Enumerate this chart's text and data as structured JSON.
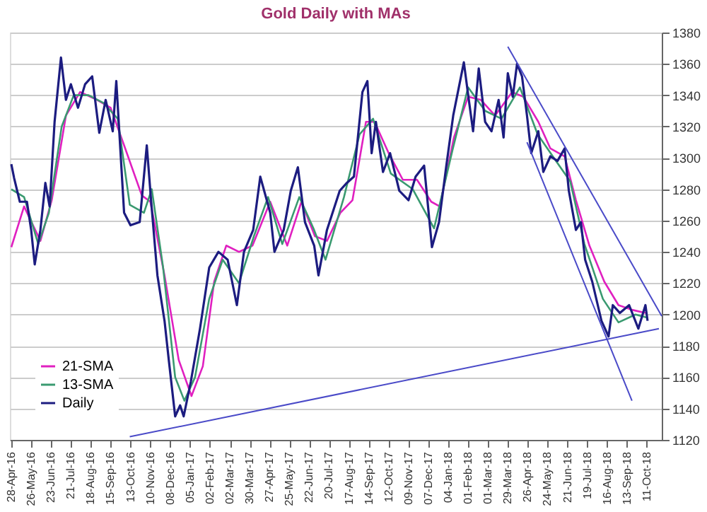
{
  "chart_data": {
    "type": "line",
    "title": "Gold Daily with MAs",
    "legend": "bottom left",
    "grid": "y",
    "xlim": [
      "2016-04-26",
      "2018-11-01"
    ],
    "ylim": [
      1120,
      1380
    ],
    "yticks": [
      1120,
      1140,
      1160,
      1180,
      1200,
      1220,
      1240,
      1260,
      1280,
      1300,
      1320,
      1340,
      1360,
      1380
    ],
    "xticks": [
      {
        "value": "2016-04-28",
        "label": "28-Apr-16"
      },
      {
        "value": "2016-05-26",
        "label": "26-May-16"
      },
      {
        "value": "2016-06-23",
        "label": "23-Jun-16"
      },
      {
        "value": "2016-07-21",
        "label": "21-Jul-16"
      },
      {
        "value": "2016-08-18",
        "label": "18-Aug-16"
      },
      {
        "value": "2016-09-15",
        "label": "15-Sep-16"
      },
      {
        "value": "2016-10-13",
        "label": "13-Oct-16"
      },
      {
        "value": "2016-11-10",
        "label": "10-Nov-16"
      },
      {
        "value": "2016-12-08",
        "label": "08-Dec-16"
      },
      {
        "value": "2017-01-05",
        "label": "05-Jan-17"
      },
      {
        "value": "2017-02-02",
        "label": "02-Feb-17"
      },
      {
        "value": "2017-03-02",
        "label": "02-Mar-17"
      },
      {
        "value": "2017-03-30",
        "label": "30-Mar-17"
      },
      {
        "value": "2017-04-27",
        "label": "27-Apr-17"
      },
      {
        "value": "2017-05-25",
        "label": "25-May-17"
      },
      {
        "value": "2017-06-22",
        "label": "22-Jun-17"
      },
      {
        "value": "2017-07-20",
        "label": "20-Jul-17"
      },
      {
        "value": "2017-08-17",
        "label": "17-Aug-17"
      },
      {
        "value": "2017-09-14",
        "label": "14-Sep-17"
      },
      {
        "value": "2017-10-12",
        "label": "12-Oct-17"
      },
      {
        "value": "2017-11-09",
        "label": "09-Nov-17"
      },
      {
        "value": "2017-12-07",
        "label": "07-Dec-17"
      },
      {
        "value": "2018-01-04",
        "label": "04-Jan-18"
      },
      {
        "value": "2018-02-01",
        "label": "01-Feb-18"
      },
      {
        "value": "2018-03-01",
        "label": "01-Mar-18"
      },
      {
        "value": "2018-03-29",
        "label": "29-Mar-18"
      },
      {
        "value": "2018-04-26",
        "label": "26-Apr-18"
      },
      {
        "value": "2018-05-24",
        "label": "24-May-18"
      },
      {
        "value": "2018-06-21",
        "label": "21-Jun-18"
      },
      {
        "value": "2018-07-19",
        "label": "19-Jul-18"
      },
      {
        "value": "2018-08-16",
        "label": "16-Aug-18"
      },
      {
        "value": "2018-09-13",
        "label": "13-Sep-18"
      },
      {
        "value": "2018-10-11",
        "label": "11-Oct-18"
      }
    ],
    "series": [
      {
        "name": "21-SMA",
        "color": "#e020c0",
        "x": [
          "2016-04-28",
          "2016-05-16",
          "2016-06-08",
          "2016-06-24",
          "2016-07-14",
          "2016-08-03",
          "2016-08-27",
          "2016-09-15",
          "2016-10-04",
          "2016-10-29",
          "2016-11-10",
          "2016-11-30",
          "2016-12-20",
          "2017-01-07",
          "2017-01-23",
          "2017-02-08",
          "2017-02-25",
          "2017-03-15",
          "2017-04-03",
          "2017-04-28",
          "2017-05-22",
          "2017-06-11",
          "2017-06-30",
          "2017-07-17",
          "2017-08-05",
          "2017-08-22",
          "2017-09-10",
          "2017-09-22",
          "2017-10-12",
          "2017-11-01",
          "2017-11-21",
          "2017-12-11",
          "2017-12-23",
          "2018-01-12",
          "2018-02-01",
          "2018-02-19",
          "2018-03-11",
          "2018-04-04",
          "2018-04-20",
          "2018-05-11",
          "2018-05-28",
          "2018-06-17",
          "2018-07-03",
          "2018-07-22",
          "2018-08-12",
          "2018-09-01",
          "2018-09-20",
          "2018-10-09"
        ],
        "values": [
          1243,
          1269,
          1247,
          1273,
          1327,
          1342,
          1337,
          1332,
          1308,
          1276,
          1272,
          1225,
          1171,
          1148,
          1167,
          1221,
          1244,
          1240,
          1244,
          1272,
          1244,
          1272,
          1250,
          1247,
          1265,
          1273,
          1323,
          1323,
          1303,
          1286,
          1286,
          1272,
          1269,
          1313,
          1339,
          1337,
          1327,
          1342,
          1339,
          1323,
          1306,
          1301,
          1273,
          1244,
          1221,
          1206,
          1203,
          1201
        ]
      },
      {
        "name": "13-SMA",
        "color": "#3a9a70",
        "x": [
          "2016-04-28",
          "2016-05-16",
          "2016-06-05",
          "2016-06-20",
          "2016-07-08",
          "2016-07-25",
          "2016-08-15",
          "2016-09-05",
          "2016-09-25",
          "2016-10-12",
          "2016-11-01",
          "2016-11-12",
          "2016-11-28",
          "2016-12-15",
          "2016-12-28",
          "2017-01-12",
          "2017-02-01",
          "2017-02-20",
          "2017-03-15",
          "2017-04-05",
          "2017-04-25",
          "2017-05-15",
          "2017-06-08",
          "2017-06-28",
          "2017-07-15",
          "2017-08-10",
          "2017-09-01",
          "2017-09-20",
          "2017-10-15",
          "2017-11-15",
          "2017-12-15",
          "2018-01-10",
          "2018-02-01",
          "2018-02-25",
          "2018-03-20",
          "2018-04-15",
          "2018-05-10",
          "2018-06-05",
          "2018-06-25",
          "2018-07-15",
          "2018-08-10",
          "2018-09-01",
          "2018-09-25",
          "2018-10-12"
        ],
        "values": [
          1280,
          1275,
          1245,
          1265,
          1320,
          1340,
          1340,
          1335,
          1325,
          1270,
          1265,
          1280,
          1230,
          1160,
          1145,
          1160,
          1210,
          1235,
          1220,
          1250,
          1275,
          1245,
          1275,
          1255,
          1235,
          1275,
          1315,
          1325,
          1290,
          1280,
          1255,
          1305,
          1345,
          1330,
          1325,
          1345,
          1315,
          1298,
          1285,
          1245,
          1210,
          1195,
          1200,
          1198
        ]
      },
      {
        "name": "Daily",
        "color": "#1c1c80",
        "x": [
          "2016-04-28",
          "2016-05-02",
          "2016-05-10",
          "2016-05-20",
          "2016-05-26",
          "2016-05-31",
          "2016-06-08",
          "2016-06-15",
          "2016-06-21",
          "2016-06-28",
          "2016-07-07",
          "2016-07-14",
          "2016-07-21",
          "2016-07-31",
          "2016-08-10",
          "2016-08-20",
          "2016-08-30",
          "2016-09-08",
          "2016-09-18",
          "2016-09-23",
          "2016-10-04",
          "2016-10-13",
          "2016-10-26",
          "2016-11-05",
          "2016-11-11",
          "2016-11-20",
          "2016-11-30",
          "2016-12-06",
          "2016-12-15",
          "2016-12-22",
          "2016-12-27",
          "2017-01-06",
          "2017-01-19",
          "2017-02-01",
          "2017-02-14",
          "2017-02-27",
          "2017-03-12",
          "2017-03-22",
          "2017-04-04",
          "2017-04-14",
          "2017-04-28",
          "2017-05-04",
          "2017-05-17",
          "2017-05-27",
          "2017-06-06",
          "2017-06-16",
          "2017-06-29",
          "2017-07-05",
          "2017-07-17",
          "2017-08-04",
          "2017-08-14",
          "2017-08-24",
          "2017-09-05",
          "2017-09-12",
          "2017-09-18",
          "2017-09-24",
          "2017-10-04",
          "2017-10-14",
          "2017-10-27",
          "2017-11-09",
          "2017-11-19",
          "2017-12-01",
          "2017-12-12",
          "2017-12-22",
          "2018-01-01",
          "2018-01-11",
          "2018-01-26",
          "2018-02-02",
          "2018-02-08",
          "2018-02-16",
          "2018-02-25",
          "2018-03-06",
          "2018-03-16",
          "2018-03-23",
          "2018-03-29",
          "2018-04-05",
          "2018-04-11",
          "2018-04-18",
          "2018-04-25",
          "2018-05-01",
          "2018-05-11",
          "2018-05-18",
          "2018-05-28",
          "2018-06-07",
          "2018-06-17",
          "2018-06-23",
          "2018-07-03",
          "2018-07-10",
          "2018-07-16",
          "2018-07-26",
          "2018-08-08",
          "2018-08-18",
          "2018-08-24",
          "2018-09-03",
          "2018-09-16",
          "2018-09-29",
          "2018-10-09",
          "2018-10-12"
        ],
        "values": [
          1296,
          1287,
          1272,
          1272,
          1254,
          1232,
          1254,
          1284,
          1269,
          1323,
          1364,
          1337,
          1347,
          1332,
          1347,
          1352,
          1316,
          1337,
          1317,
          1349,
          1265,
          1257,
          1259,
          1308,
          1273,
          1225,
          1196,
          1171,
          1135,
          1142,
          1135,
          1157,
          1191,
          1230,
          1240,
          1235,
          1206,
          1240,
          1254,
          1288,
          1265,
          1240,
          1254,
          1279,
          1294,
          1259,
          1244,
          1225,
          1254,
          1279,
          1284,
          1288,
          1342,
          1349,
          1303,
          1323,
          1291,
          1303,
          1279,
          1273,
          1288,
          1295,
          1243,
          1259,
          1294,
          1327,
          1361,
          1337,
          1317,
          1357,
          1323,
          1317,
          1337,
          1313,
          1354,
          1339,
          1360,
          1352,
          1327,
          1303,
          1317,
          1291,
          1301,
          1298,
          1306,
          1279,
          1254,
          1259,
          1235,
          1221,
          1196,
          1186,
          1206,
          1201,
          1206,
          1191,
          1206,
          1196
        ]
      },
      {
        "type": "line",
        "color": "#4a4ac8",
        "x": [
          "2016-10-12",
          "2018-10-28"
        ],
        "values": [
          1122,
          1191
        ]
      },
      {
        "type": "line",
        "color": "#4a4ac8",
        "x": [
          "2018-03-29",
          "2018-11-01"
        ],
        "values": [
          1371,
          1199
        ]
      },
      {
        "type": "line",
        "color": "#4a4ac8",
        "x": [
          "2018-04-25",
          "2018-09-20"
        ],
        "values": [
          1310,
          1145
        ]
      }
    ]
  }
}
